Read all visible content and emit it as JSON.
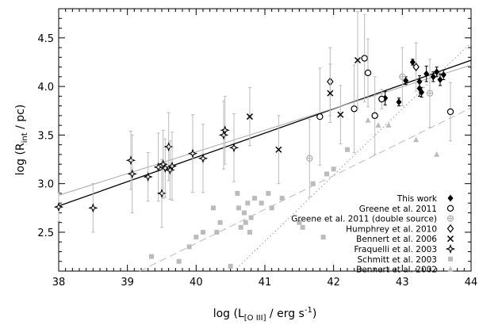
{
  "chart_data": {
    "type": "scatter",
    "xlabel": "log (L_[O III] / erg s^-1)",
    "ylabel": "log (R_int / pc)",
    "xlim": [
      38,
      44
    ],
    "ylim": [
      2.1,
      4.8
    ],
    "x_ticks": [
      38,
      39,
      40,
      41,
      42,
      43,
      44
    ],
    "y_ticks": [
      2.5,
      3.0,
      3.5,
      4.0,
      4.5
    ],
    "x_tick_labels": [
      "38",
      "39",
      "40",
      "41",
      "42",
      "43",
      "44"
    ],
    "y_tick_labels": [
      "2.5",
      "3.0",
      "3.5",
      "4.0",
      "4.5"
    ],
    "legend_position": "bottom-right",
    "series": [
      {
        "name": "This work",
        "marker": "filled-diamond",
        "color": "#000000",
        "points": [
          {
            "x": 42.75,
            "y": 3.88,
            "err": 0.07
          },
          {
            "x": 42.95,
            "y": 3.84,
            "err": 0.04
          },
          {
            "x": 43.05,
            "y": 4.06,
            "err": 0.04
          },
          {
            "x": 43.15,
            "y": 4.25,
            "err": 0.03
          },
          {
            "x": 43.25,
            "y": 3.98,
            "err": 0.08
          },
          {
            "x": 43.25,
            "y": 4.05,
            "err": 0.06
          },
          {
            "x": 43.28,
            "y": 3.94,
            "err": 0.05
          },
          {
            "x": 43.35,
            "y": 4.13,
            "err": 0.08
          },
          {
            "x": 43.45,
            "y": 4.1,
            "err": 0.05
          },
          {
            "x": 43.5,
            "y": 4.15,
            "err": 0.05
          },
          {
            "x": 43.55,
            "y": 4.07,
            "err": 0.06
          },
          {
            "x": 43.6,
            "y": 4.12,
            "err": 0.05
          }
        ]
      },
      {
        "name": "Greene et al. 2011",
        "marker": "open-circle",
        "color": "#000000",
        "points": [
          {
            "x": 41.8,
            "y": 3.69,
            "err": 0.5
          },
          {
            "x": 42.3,
            "y": 3.77,
            "err": 0.45
          },
          {
            "x": 42.45,
            "y": 4.29,
            "err": 0.45
          },
          {
            "x": 42.5,
            "y": 4.14,
            "err": 0.35
          },
          {
            "x": 42.6,
            "y": 3.7,
            "err": 0.4
          },
          {
            "x": 42.7,
            "y": 3.87,
            "err": 0.1
          },
          {
            "x": 43.7,
            "y": 3.74,
            "err": 0.3
          }
        ]
      },
      {
        "name": "Greene et al. 2011 (double source)",
        "marker": "circle-plus",
        "color": "#aaaaaa",
        "points": [
          {
            "x": 41.65,
            "y": 3.26,
            "err": 0.4
          },
          {
            "x": 43.0,
            "y": 4.1,
            "err": 0.3
          },
          {
            "x": 43.4,
            "y": 3.93,
            "err": 0.35
          }
        ]
      },
      {
        "name": "Humphrey et al. 2010",
        "marker": "open-diamond",
        "color": "#000000",
        "points": [
          {
            "x": 41.95,
            "y": 4.05,
            "err": 0.35
          },
          {
            "x": 43.2,
            "y": 4.2,
            "err": 0.25
          }
        ]
      },
      {
        "name": "Bennert et al. 2006",
        "marker": "x-cross",
        "color": "#000000",
        "points": [
          {
            "x": 40.78,
            "y": 3.69,
            "err": 0.3
          },
          {
            "x": 41.2,
            "y": 3.35,
            "err": 0.35
          },
          {
            "x": 41.95,
            "y": 3.93,
            "err": 0.3
          },
          {
            "x": 42.1,
            "y": 3.71,
            "err": 0.3
          },
          {
            "x": 42.35,
            "y": 4.27,
            "err": 0.5
          }
        ]
      },
      {
        "name": "Fraquelli et al. 2003",
        "marker": "four-point-star",
        "color": "#000000",
        "points": [
          {
            "x": 38.0,
            "y": 2.76,
            "err": 0.15
          },
          {
            "x": 38.5,
            "y": 2.75,
            "err": 0.25
          },
          {
            "x": 39.05,
            "y": 3.24,
            "err": 0.3
          },
          {
            "x": 39.07,
            "y": 3.1,
            "err": 0.4
          },
          {
            "x": 39.3,
            "y": 3.07,
            "err": 0.25
          },
          {
            "x": 39.45,
            "y": 3.17,
            "err": 0.35
          },
          {
            "x": 39.5,
            "y": 2.9,
            "err": 0.35
          },
          {
            "x": 39.52,
            "y": 3.2,
            "err": 0.35
          },
          {
            "x": 39.55,
            "y": 3.16,
            "err": 0.3
          },
          {
            "x": 39.6,
            "y": 3.38,
            "err": 0.35
          },
          {
            "x": 39.62,
            "y": 3.14,
            "err": 0.3
          },
          {
            "x": 39.65,
            "y": 3.18,
            "err": 0.35
          },
          {
            "x": 39.95,
            "y": 3.31,
            "err": 0.4
          },
          {
            "x": 40.1,
            "y": 3.26,
            "err": 0.35
          },
          {
            "x": 40.4,
            "y": 3.5,
            "err": 0.35
          },
          {
            "x": 40.42,
            "y": 3.55,
            "err": 0.35
          },
          {
            "x": 40.55,
            "y": 3.37,
            "err": 0.35
          }
        ]
      },
      {
        "name": "Schmitt et al. 2003",
        "marker": "filled-square",
        "color": "#bbbbbb",
        "points": [
          {
            "x": 39.35,
            "y": 2.25
          },
          {
            "x": 39.75,
            "y": 2.2
          },
          {
            "x": 39.9,
            "y": 2.35
          },
          {
            "x": 40.0,
            "y": 2.45
          },
          {
            "x": 40.1,
            "y": 2.5
          },
          {
            "x": 40.25,
            "y": 2.75
          },
          {
            "x": 40.3,
            "y": 2.5
          },
          {
            "x": 40.35,
            "y": 2.6
          },
          {
            "x": 40.5,
            "y": 2.15
          },
          {
            "x": 40.6,
            "y": 2.9
          },
          {
            "x": 40.62,
            "y": 2.75
          },
          {
            "x": 40.65,
            "y": 2.55
          },
          {
            "x": 40.7,
            "y": 2.7
          },
          {
            "x": 40.72,
            "y": 2.6
          },
          {
            "x": 40.75,
            "y": 2.8
          },
          {
            "x": 40.78,
            "y": 2.5
          },
          {
            "x": 40.8,
            "y": 2.65
          },
          {
            "x": 40.85,
            "y": 2.85
          },
          {
            "x": 40.95,
            "y": 2.8
          },
          {
            "x": 41.05,
            "y": 2.9
          },
          {
            "x": 41.1,
            "y": 2.75
          },
          {
            "x": 41.25,
            "y": 2.85
          },
          {
            "x": 41.5,
            "y": 2.6
          },
          {
            "x": 41.55,
            "y": 2.55
          },
          {
            "x": 41.7,
            "y": 3.0
          },
          {
            "x": 41.85,
            "y": 2.45
          },
          {
            "x": 41.9,
            "y": 3.1
          },
          {
            "x": 42.0,
            "y": 3.15
          },
          {
            "x": 42.2,
            "y": 3.35
          }
        ]
      },
      {
        "name": "Bennert et al. 2002",
        "marker": "filled-triangle",
        "color": "#bbbbbb",
        "points": [
          {
            "x": 42.5,
            "y": 3.65
          },
          {
            "x": 42.65,
            "y": 3.6
          },
          {
            "x": 42.8,
            "y": 3.6
          },
          {
            "x": 43.2,
            "y": 3.45
          },
          {
            "x": 43.5,
            "y": 3.3
          }
        ]
      }
    ],
    "fit_lines": [
      {
        "name": "black solid fit",
        "style": "solid",
        "color": "#000000",
        "x": [
          38,
          44
        ],
        "y": [
          2.77,
          4.27
        ]
      },
      {
        "name": "grey solid fit",
        "style": "solid",
        "color": "#aaaaaa",
        "x": [
          38,
          44
        ],
        "y": [
          2.88,
          4.22
        ]
      },
      {
        "name": "dotted fit",
        "style": "dotted",
        "color": "#999999",
        "x": [
          40.55,
          44
        ],
        "y": [
          2.1,
          4.45
        ]
      },
      {
        "name": "dashed fit",
        "style": "dashed",
        "color": "#bbbbbb",
        "x": [
          39.18,
          44
        ],
        "y": [
          2.1,
          3.78
        ]
      }
    ]
  }
}
